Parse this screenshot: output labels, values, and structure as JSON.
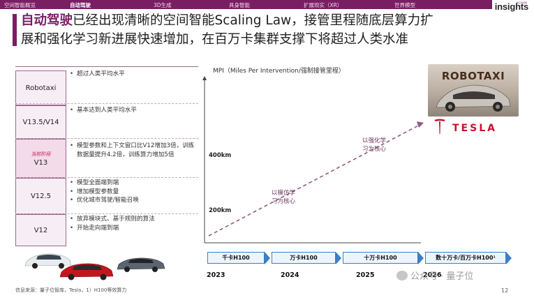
{
  "nav": {
    "items": [
      "空间智能概览",
      "自动驾驶",
      "3D生成",
      "具身智能",
      "扩展现实（XR）",
      "世界模型"
    ],
    "active_index": 1
  },
  "logo": {
    "text": "insights",
    "sub": "量子位智库"
  },
  "title": {
    "highlight": "自动驾驶",
    "line1_rest": "已经出现清晰的空间智能Scaling Law，接管里程随底层算力扩",
    "line2": "展和强化学习新进展快速增加，在百万卡集群支撑下将超过人类水准"
  },
  "stages": [
    {
      "label": "Robotaxi",
      "badge": "",
      "bullets": [
        "超过人类平均水平"
      ]
    },
    {
      "label": "V13.5/V14",
      "badge": "",
      "bullets": [
        "基本达到人类平均水平"
      ]
    },
    {
      "label": "V13",
      "badge": "当前阶段",
      "bullets": [
        "模型参数和上下文窗口比V12增加3倍，训练数据量提升4.2倍，训练算力增加5倍"
      ]
    },
    {
      "label": "V12.5",
      "badge": "",
      "bullets": [
        "模型全面端到端",
        "增加模型参数量",
        "优化城市驾驶/智能召唤"
      ]
    },
    {
      "label": "V12",
      "badge": "",
      "bullets": [
        "放弃模块式、基于规则的算法",
        "开始走向端到端"
      ]
    }
  ],
  "source": "信息来源：量子位智库，Tesla，1）H100等效算力",
  "chart_data": {
    "type": "line",
    "ylabel": "MPI（Miles Per Intervention/强制接管里程）",
    "y_ticks": [
      "200km",
      "400km"
    ],
    "x": [
      "2023",
      "2024",
      "2025",
      "2026"
    ],
    "annotations": [
      "以模仿学习为核心",
      "以强化学习为核心"
    ],
    "compute": [
      "千卡H100",
      "万卡H100",
      "十万卡H100",
      "数十万卡/百万卡H100¹"
    ]
  },
  "robotaxi_image_text": "ROBOTAXI",
  "tesla_logo_text": "TESLA",
  "watermark": "公众号 · 量子位",
  "page_number": "12",
  "colors": {
    "brand": "#7a1e63",
    "accent_blue": "#3b7fc4",
    "tesla_red": "#c8102e"
  }
}
